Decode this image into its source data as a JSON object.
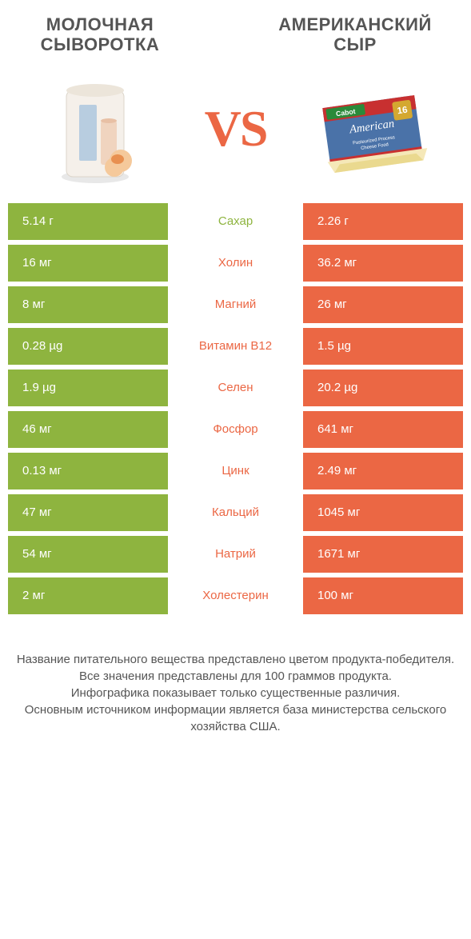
{
  "colors": {
    "green": "#8eb43f",
    "orange": "#eb6744",
    "text_gray": "#555555",
    "vs": "#eb6744",
    "white": "#ffffff"
  },
  "header": {
    "left_title_line1": "МОЛОЧНАЯ",
    "left_title_line2": "СЫВОРОТКА",
    "right_title_line1": "АМЕРИКАНСКИЙ",
    "right_title_line2": "СЫР",
    "vs": "VS"
  },
  "rows": [
    {
      "left": "5.14 г",
      "label": "Сахар",
      "right": "2.26 г",
      "winner": "left"
    },
    {
      "left": "16 мг",
      "label": "Холин",
      "right": "36.2 мг",
      "winner": "right"
    },
    {
      "left": "8 мг",
      "label": "Магний",
      "right": "26 мг",
      "winner": "right"
    },
    {
      "left": "0.28 µg",
      "label": "Витамин B12",
      "right": "1.5 µg",
      "winner": "right"
    },
    {
      "left": "1.9 µg",
      "label": "Селен",
      "right": "20.2 µg",
      "winner": "right"
    },
    {
      "left": "46 мг",
      "label": "Фосфор",
      "right": "641 мг",
      "winner": "right"
    },
    {
      "left": "0.13 мг",
      "label": "Цинк",
      "right": "2.49 мг",
      "winner": "right"
    },
    {
      "left": "47 мг",
      "label": "Кальций",
      "right": "1045 мг",
      "winner": "right"
    },
    {
      "left": "54 мг",
      "label": "Натрий",
      "right": "1671 мг",
      "winner": "right"
    },
    {
      "left": "2 мг",
      "label": "Холестерин",
      "right": "100 мг",
      "winner": "right"
    }
  ],
  "footer": {
    "line1": "Название питательного вещества представлено цветом продукта-победителя.",
    "line2": "Все значения представлены для 100 граммов продукта.",
    "line3": "Инфографика показывает только существенные различия.",
    "line4": "Основным источником информации является база министерства сельского хозяйства США."
  }
}
